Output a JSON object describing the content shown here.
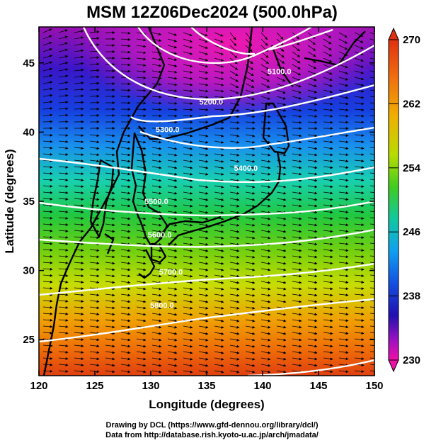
{
  "title": "MSM 12Z06Dec2024 (500.0hPa)",
  "x_axis": {
    "label": "Longitude (degrees)",
    "min": 120,
    "max": 150,
    "ticks": [
      "120",
      "125",
      "130",
      "135",
      "140",
      "145",
      "150"
    ]
  },
  "y_axis": {
    "label": "Latitude  (degrees)",
    "min": 22.4,
    "max": 47.6,
    "ticks": [
      "25",
      "30",
      "35",
      "40",
      "45"
    ]
  },
  "colorbar": {
    "min": 230,
    "max": 270,
    "ticks": [
      "270",
      "262",
      "254",
      "246",
      "238",
      "230"
    ]
  },
  "contours": [
    {
      "label": "5100.0",
      "lon": 141.5,
      "lat": 44.2
    },
    {
      "label": "5200.0",
      "lon": 135.4,
      "lat": 42.0
    },
    {
      "label": "5300.0",
      "lon": 131.5,
      "lat": 40.0
    },
    {
      "label": "5400.0",
      "lon": 138.5,
      "lat": 37.2
    },
    {
      "label": "5500.0",
      "lon": 130.5,
      "lat": 34.8
    },
    {
      "label": "5600.0",
      "lon": 130.8,
      "lat": 32.4
    },
    {
      "label": "5700.0",
      "lon": 131.8,
      "lat": 29.7
    },
    {
      "label": "5800.0",
      "lon": 131.0,
      "lat": 27.3
    }
  ],
  "credits": {
    "line1": "Drawing by DCL (https://www.gfd-dennou.org/library/dcl/)",
    "line2": "Data from http://database.rish.kyoto-u.ac.jp/arch/jmadata/"
  }
}
